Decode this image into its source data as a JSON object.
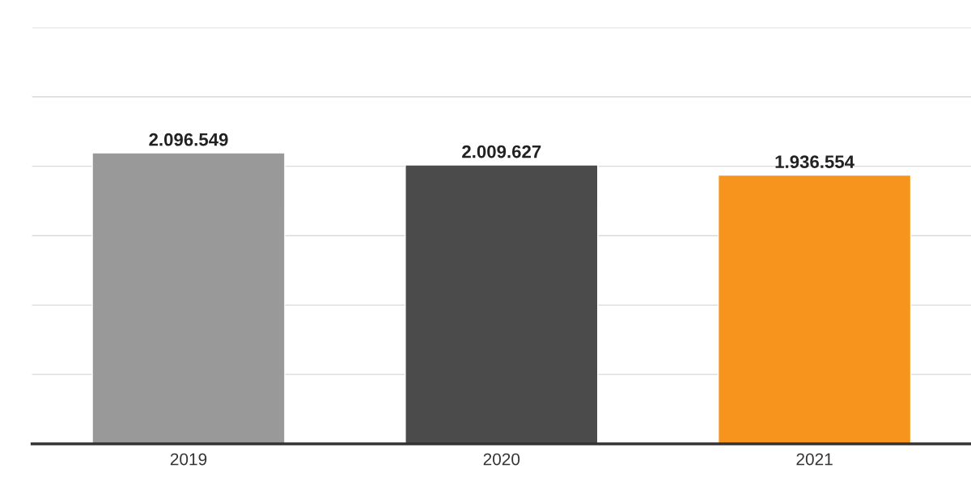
{
  "chart_data": {
    "type": "bar",
    "categories": [
      "2019",
      "2020",
      "2021"
    ],
    "values": [
      2096549,
      2009627,
      1936554
    ],
    "colors": [
      "#999999",
      "#4b4b4b",
      "#f7941d"
    ],
    "value_labels": [
      "2.096.549",
      "2.009.627",
      "1.936.554"
    ],
    "ylim": [
      0,
      3000000
    ],
    "yticks": [
      {
        "value": 0,
        "label": null
      },
      {
        "value": 500000,
        "label": null
      },
      {
        "value": 1000000,
        "label": null
      },
      {
        "value": 1500000,
        "label": null
      },
      {
        "value": 2000000,
        "label": null
      },
      {
        "value": 2500000,
        "label": null
      },
      {
        "value": 3000000,
        "label": null
      }
    ],
    "tick_labels": "x",
    "grid": "y",
    "legend": false
  }
}
